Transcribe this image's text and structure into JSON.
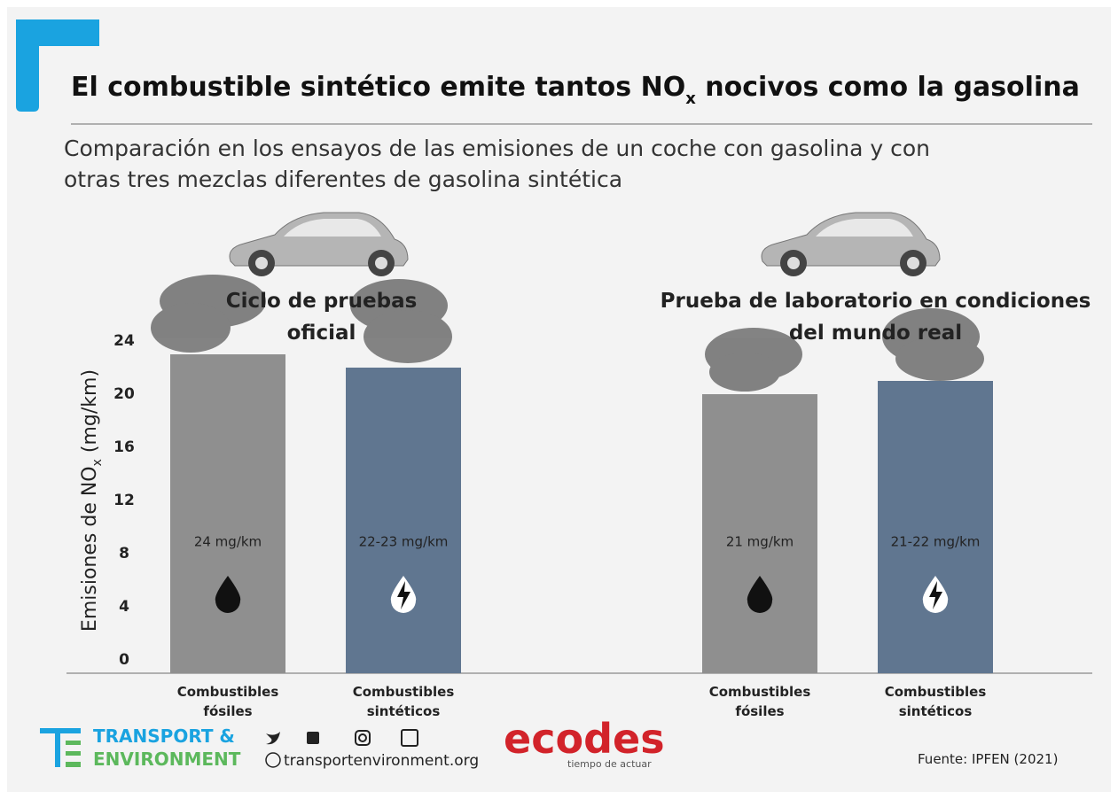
{
  "chart_data": {
    "type": "bar",
    "title": [
      "El combustible sintético emite tantos NO",
      "x",
      " nocivos como la gasolina"
    ],
    "subtitle": [
      "Comparación en los ensayos de las emisiones de un coche con gasolina y con",
      "otras tres mezclas diferentes de gasolina sintética"
    ],
    "y_label": [
      "Emisiones de NO",
      "x",
      " (mg/km)"
    ],
    "categories": [
      "Ciclo de pruebas oficial",
      "Prueba de laboratorio en condiciones del mundo real"
    ],
    "series": [
      {
        "name": "Combustibles fósiles",
        "color": "#8f8f8f",
        "values": [
          24,
          21
        ],
        "value_labels": [
          "24 mg/km",
          "21 mg/km"
        ]
      },
      {
        "name": "Combustibles sintéticos",
        "color": "#607690",
        "values": [
          23,
          22
        ],
        "value_labels": [
          "22-23 mg/km",
          "21-22 mg/km"
        ]
      }
    ],
    "ylim": [
      0,
      24
    ],
    "yticks": [
      0,
      4,
      8,
      12,
      16,
      20,
      24
    ],
    "footer": {
      "logo_line1": "TRANSPORT &",
      "logo_line2": "ENVIRONMENT",
      "website": "transportenvironment.org",
      "partner": "ecodes",
      "partner_tagline": "tiempo de actuar",
      "source": "Fuente: IPFEN (2021)"
    }
  }
}
